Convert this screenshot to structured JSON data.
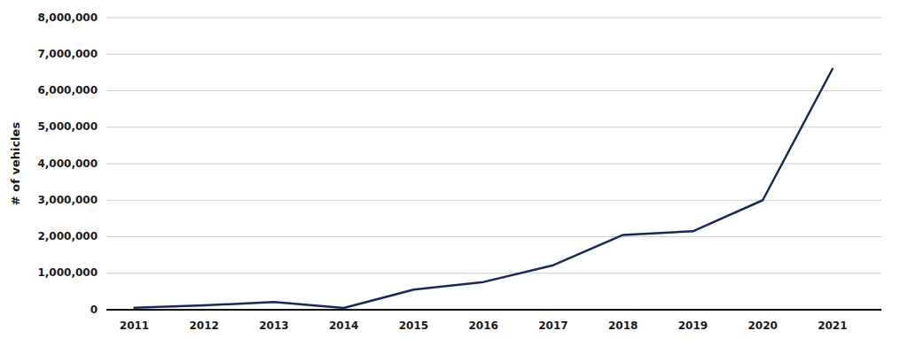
{
  "chart_data": {
    "type": "line",
    "x": [
      2011,
      2012,
      2013,
      2014,
      2015,
      2016,
      2017,
      2018,
      2019,
      2020,
      2021
    ],
    "values": [
      55000,
      120000,
      210000,
      50000,
      550000,
      760000,
      1220000,
      2050000,
      2150000,
      3000000,
      6600000
    ],
    "color": "#1a2857",
    "ylabel": "# of vehicles",
    "xlim": [
      2010.6,
      2021.7
    ],
    "xticks": [
      2011,
      2012,
      2013,
      2014,
      2015,
      2016,
      2017,
      2018,
      2019,
      2020,
      2021
    ],
    "ylim": [
      0,
      8000000
    ],
    "yticks": [
      0,
      {
        "value": 1000000,
        "label": "1,000,000"
      },
      {
        "value": 2000000,
        "label": "2,000,000"
      },
      {
        "value": 3000000,
        "label": "3,000,000"
      },
      {
        "value": 4000000,
        "label": "4,000,000"
      },
      {
        "value": 5000000,
        "label": "5,000,000"
      },
      {
        "value": 6000000,
        "label": "6,000,000"
      },
      {
        "value": 7000000,
        "label": "7,000,000"
      },
      {
        "value": 8000000,
        "label": "8,000,000"
      }
    ],
    "grid": true
  }
}
